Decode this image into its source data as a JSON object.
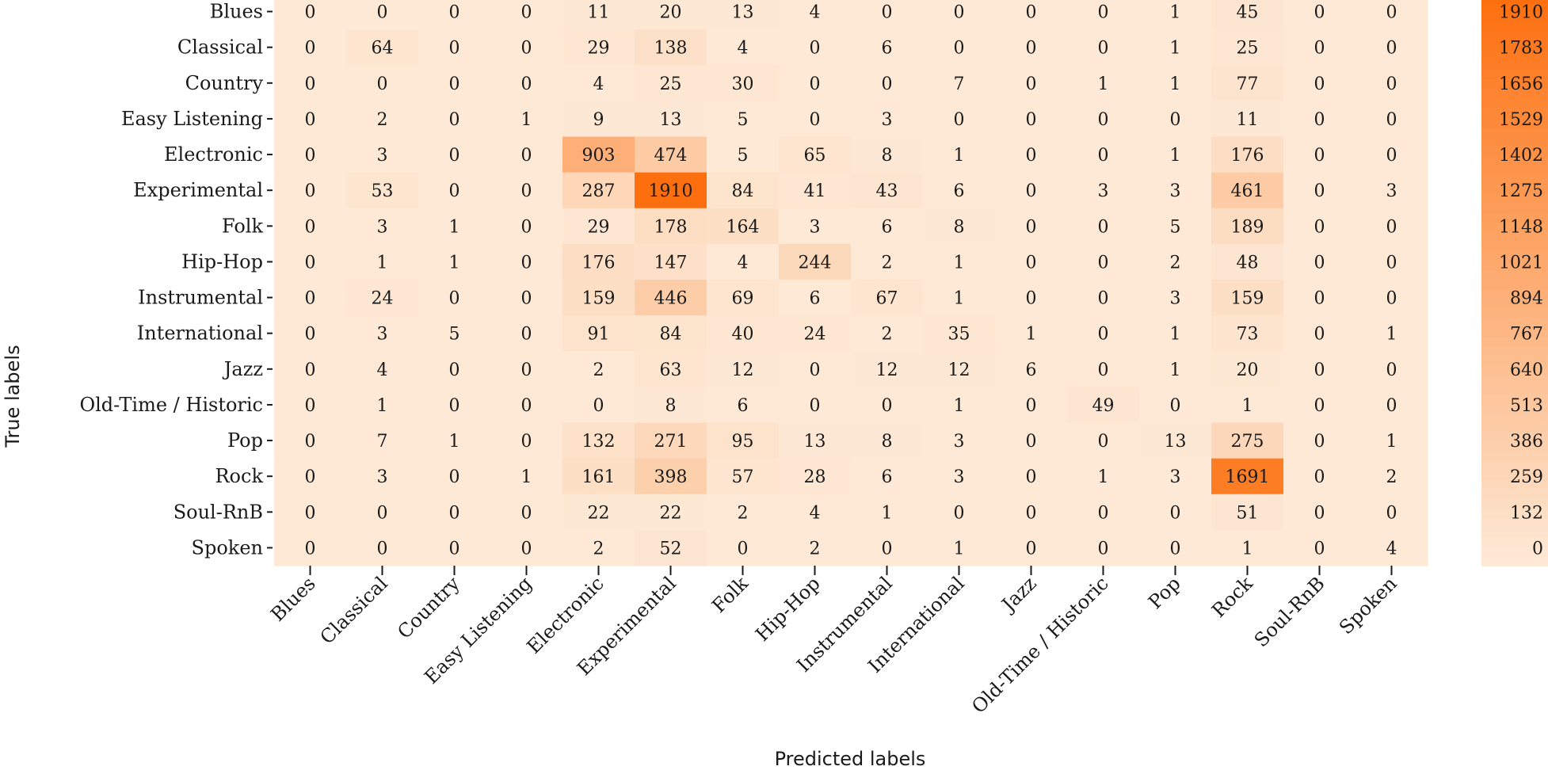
{
  "chart_data": {
    "type": "heatmap",
    "title": "",
    "xlabel": "Predicted labels",
    "ylabel": "True labels",
    "row_labels": [
      "Blues",
      "Classical",
      "Country",
      "Easy Listening",
      "Electronic",
      "Experimental",
      "Folk",
      "Hip-Hop",
      "Instrumental",
      "International",
      "Jazz",
      "Old-Time / Historic",
      "Pop",
      "Rock",
      "Soul-RnB",
      "Spoken"
    ],
    "col_labels": [
      "Blues",
      "Classical",
      "Country",
      "Easy Listening",
      "Electronic",
      "Experimental",
      "Folk",
      "Hip-Hop",
      "Instrumental",
      "International",
      "Jazz",
      "Old-Time / Historic",
      "Pop",
      "Rock",
      "Soul-RnB",
      "Spoken"
    ],
    "values": [
      [
        0,
        0,
        0,
        0,
        11,
        20,
        13,
        4,
        0,
        0,
        0,
        0,
        1,
        45,
        0,
        0
      ],
      [
        0,
        64,
        0,
        0,
        29,
        138,
        4,
        0,
        6,
        0,
        0,
        0,
        1,
        25,
        0,
        0
      ],
      [
        0,
        0,
        0,
        0,
        4,
        25,
        30,
        0,
        0,
        7,
        0,
        1,
        1,
        77,
        0,
        0
      ],
      [
        0,
        2,
        0,
        1,
        9,
        13,
        5,
        0,
        3,
        0,
        0,
        0,
        0,
        11,
        0,
        0
      ],
      [
        0,
        3,
        0,
        0,
        903,
        474,
        5,
        65,
        8,
        1,
        0,
        0,
        1,
        176,
        0,
        0
      ],
      [
        0,
        53,
        0,
        0,
        287,
        1910,
        84,
        41,
        43,
        6,
        0,
        3,
        3,
        461,
        0,
        3
      ],
      [
        0,
        3,
        1,
        0,
        29,
        178,
        164,
        3,
        6,
        8,
        0,
        0,
        5,
        189,
        0,
        0
      ],
      [
        0,
        1,
        1,
        0,
        176,
        147,
        4,
        244,
        2,
        1,
        0,
        0,
        2,
        48,
        0,
        0
      ],
      [
        0,
        24,
        0,
        0,
        159,
        446,
        69,
        6,
        67,
        1,
        0,
        0,
        3,
        159,
        0,
        0
      ],
      [
        0,
        3,
        5,
        0,
        91,
        84,
        40,
        24,
        2,
        35,
        1,
        0,
        1,
        73,
        0,
        1
      ],
      [
        0,
        4,
        0,
        0,
        2,
        63,
        12,
        0,
        12,
        12,
        6,
        0,
        1,
        20,
        0,
        0
      ],
      [
        0,
        1,
        0,
        0,
        0,
        8,
        6,
        0,
        0,
        1,
        0,
        49,
        0,
        1,
        0,
        0
      ],
      [
        0,
        7,
        1,
        0,
        132,
        271,
        95,
        13,
        8,
        3,
        0,
        0,
        13,
        275,
        0,
        1
      ],
      [
        0,
        3,
        0,
        1,
        161,
        398,
        57,
        28,
        6,
        3,
        0,
        1,
        3,
        1691,
        0,
        2
      ],
      [
        0,
        0,
        0,
        0,
        22,
        22,
        2,
        4,
        1,
        0,
        0,
        0,
        0,
        51,
        0,
        0
      ],
      [
        0,
        0,
        0,
        0,
        2,
        52,
        0,
        2,
        0,
        1,
        0,
        0,
        0,
        1,
        0,
        4
      ]
    ],
    "vmin": 0,
    "vmax": 1910,
    "colormap": {
      "low": "#fde9d6",
      "high": "#fd6f0e"
    },
    "colorbar": {
      "ticks": [
        "1910",
        "1783",
        "1656",
        "1529",
        "1402",
        "1275",
        "1148",
        "1021",
        "894",
        "767",
        "640",
        "513",
        "386",
        "259",
        "132",
        "0"
      ]
    },
    "grid": false,
    "legend": "colorbar-right"
  }
}
